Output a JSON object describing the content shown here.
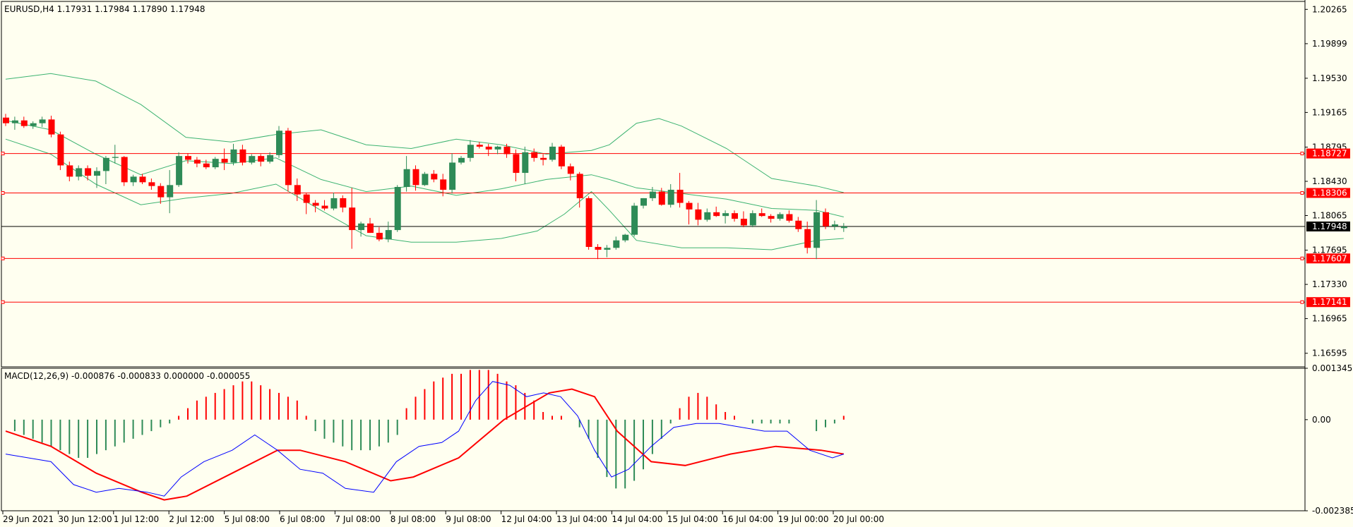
{
  "window": {
    "header": "EURUSD,H4  1.17931 1.17984 1.17890 1.17948"
  },
  "colors": {
    "background": "#fffff0",
    "bull": "#2e8b57",
    "bear": "#ff0000",
    "bands": "#3cb371",
    "macd_line": "#0000ff",
    "signal_line": "#ff0000",
    "hline": "#ff0000",
    "price_line": "#000000"
  },
  "chart_data": [
    {
      "type": "candlestick",
      "title": "EURUSD,H4",
      "ohlc_latest": {
        "open": 1.17931,
        "high": 1.17984,
        "low": 1.1789,
        "close": 1.17948
      },
      "ylim": [
        1.1645,
        1.2035
      ],
      "y_ticks": [
        "1.20265",
        "1.19899",
        "1.19530",
        "1.19165",
        "1.18795",
        "1.18430",
        "1.18065",
        "1.17695",
        "1.17330",
        "1.16965",
        "1.16595"
      ],
      "x_ticks": [
        "29 Jun 2021",
        "30 Jun 12:00",
        "1 Jul 12:00",
        "2 Jul 12:00",
        "5 Jul 08:00",
        "6 Jul 08:00",
        "7 Jul 08:00",
        "8 Jul 08:00",
        "9 Jul 08:00",
        "12 Jul 04:00",
        "13 Jul 04:00",
        "14 Jul 04:00",
        "15 Jul 04:00",
        "16 Jul 04:00",
        "19 Jul 00:00",
        "20 Jul 00:00"
      ],
      "current_price": "1.17948",
      "horizontal_levels": [
        "1.18727",
        "1.18306",
        "1.17607",
        "1.17141"
      ],
      "candles": [
        [
          1.1911,
          1.1915,
          1.1902,
          1.1905
        ],
        [
          1.1905,
          1.1912,
          1.1898,
          1.1908
        ],
        [
          1.1908,
          1.1912,
          1.19,
          1.1902
        ],
        [
          1.1902,
          1.1907,
          1.1899,
          1.1905
        ],
        [
          1.1905,
          1.1912,
          1.1901,
          1.1909
        ],
        [
          1.1909,
          1.1913,
          1.189,
          1.1893
        ],
        [
          1.1893,
          1.1896,
          1.1855,
          1.186
        ],
        [
          1.186,
          1.1864,
          1.1843,
          1.1848
        ],
        [
          1.1848,
          1.186,
          1.1844,
          1.1857
        ],
        [
          1.1857,
          1.186,
          1.1844,
          1.1849
        ],
        [
          1.1849,
          1.1858,
          1.1836,
          1.1854
        ],
        [
          1.1854,
          1.187,
          1.184,
          1.1868
        ],
        [
          1.1868,
          1.1882,
          1.1862,
          1.1869
        ],
        [
          1.1869,
          1.187,
          1.1838,
          1.1842
        ],
        [
          1.1842,
          1.185,
          1.1838,
          1.1848
        ],
        [
          1.1848,
          1.1851,
          1.184,
          1.1842
        ],
        [
          1.1842,
          1.1846,
          1.1834,
          1.1838
        ],
        [
          1.1838,
          1.1841,
          1.1819,
          1.1826
        ],
        [
          1.1826,
          1.1855,
          1.1809,
          1.1839
        ],
        [
          1.1839,
          1.1874,
          1.1837,
          1.187
        ],
        [
          1.187,
          1.1873,
          1.1862,
          1.1866
        ],
        [
          1.1866,
          1.1869,
          1.1858,
          1.1862
        ],
        [
          1.1862,
          1.1866,
          1.1856,
          1.1858
        ],
        [
          1.1858,
          1.1869,
          1.1856,
          1.1867
        ],
        [
          1.1867,
          1.1878,
          1.1855,
          1.1863
        ],
        [
          1.1863,
          1.1883,
          1.186,
          1.1877
        ],
        [
          1.1877,
          1.1882,
          1.186,
          1.1863
        ],
        [
          1.1863,
          1.1872,
          1.1861,
          1.187
        ],
        [
          1.187,
          1.1872,
          1.1859,
          1.1864
        ],
        [
          1.1864,
          1.1874,
          1.1862,
          1.1871
        ],
        [
          1.1871,
          1.1902,
          1.1868,
          1.1897
        ],
        [
          1.1897,
          1.19,
          1.1832,
          1.1839
        ],
        [
          1.1839,
          1.1846,
          1.1822,
          1.1829
        ],
        [
          1.1829,
          1.1831,
          1.1808,
          1.182
        ],
        [
          1.182,
          1.1823,
          1.181,
          1.1817
        ],
        [
          1.1817,
          1.1823,
          1.1812,
          1.1814
        ],
        [
          1.1814,
          1.1831,
          1.1812,
          1.1825
        ],
        [
          1.1825,
          1.1828,
          1.181,
          1.1815
        ],
        [
          1.1815,
          1.1836,
          1.1771,
          1.1791
        ],
        [
          1.1791,
          1.18,
          1.1784,
          1.1798
        ],
        [
          1.1798,
          1.1804,
          1.1788,
          1.1788
        ],
        [
          1.1788,
          1.1794,
          1.1779,
          1.1781
        ],
        [
          1.1781,
          1.18,
          1.1778,
          1.1791
        ],
        [
          1.1791,
          1.1839,
          1.1789,
          1.1837
        ],
        [
          1.1837,
          1.187,
          1.1832,
          1.1856
        ],
        [
          1.1856,
          1.186,
          1.1833,
          1.1839
        ],
        [
          1.1839,
          1.1853,
          1.1838,
          1.1851
        ],
        [
          1.1851,
          1.1855,
          1.1842,
          1.1845
        ],
        [
          1.1845,
          1.1851,
          1.1827,
          1.1834
        ],
        [
          1.1834,
          1.1873,
          1.183,
          1.1863
        ],
        [
          1.1863,
          1.187,
          1.1861,
          1.1868
        ],
        [
          1.1868,
          1.1887,
          1.1864,
          1.1882
        ],
        [
          1.1882,
          1.1885,
          1.1878,
          1.188
        ],
        [
          1.188,
          1.1883,
          1.187,
          1.1877
        ],
        [
          1.1877,
          1.1881,
          1.1872,
          1.188
        ],
        [
          1.188,
          1.1883,
          1.1868,
          1.1872
        ],
        [
          1.1872,
          1.1877,
          1.1843,
          1.1852
        ],
        [
          1.1852,
          1.188,
          1.184,
          1.1874
        ],
        [
          1.1874,
          1.1878,
          1.1864,
          1.1868
        ],
        [
          1.1868,
          1.1872,
          1.186,
          1.1866
        ],
        [
          1.1866,
          1.1884,
          1.1864,
          1.188
        ],
        [
          1.188,
          1.1882,
          1.1856,
          1.1859
        ],
        [
          1.1859,
          1.1862,
          1.1844,
          1.1851
        ],
        [
          1.1851,
          1.1853,
          1.1815,
          1.1825
        ],
        [
          1.1825,
          1.1827,
          1.177,
          1.1773
        ],
        [
          1.1773,
          1.1776,
          1.176,
          1.177
        ],
        [
          1.177,
          1.1775,
          1.1762,
          1.1772
        ],
        [
          1.1772,
          1.1784,
          1.177,
          1.178
        ],
        [
          1.178,
          1.1787,
          1.1778,
          1.1786
        ],
        [
          1.1786,
          1.182,
          1.1784,
          1.1817
        ],
        [
          1.1817,
          1.1825,
          1.1814,
          1.1825
        ],
        [
          1.1825,
          1.1837,
          1.1822,
          1.1832
        ],
        [
          1.1832,
          1.1836,
          1.1817,
          1.1818
        ],
        [
          1.1818,
          1.184,
          1.1815,
          1.1834
        ],
        [
          1.1834,
          1.1852,
          1.1815,
          1.182
        ],
        [
          1.182,
          1.1822,
          1.1797,
          1.1813
        ],
        [
          1.1813,
          1.182,
          1.1796,
          1.1802
        ],
        [
          1.1802,
          1.1814,
          1.18,
          1.181
        ],
        [
          1.181,
          1.1816,
          1.1805,
          1.1806
        ],
        [
          1.1806,
          1.1812,
          1.1798,
          1.1809
        ],
        [
          1.1809,
          1.1812,
          1.18,
          1.1803
        ],
        [
          1.1803,
          1.1811,
          1.1794,
          1.1796
        ],
        [
          1.1796,
          1.1812,
          1.1794,
          1.1809
        ],
        [
          1.1809,
          1.1814,
          1.1805,
          1.1806
        ],
        [
          1.1806,
          1.1808,
          1.1799,
          1.1803
        ],
        [
          1.1803,
          1.181,
          1.1801,
          1.1808
        ],
        [
          1.1808,
          1.1812,
          1.1799,
          1.1801
        ],
        [
          1.1801,
          1.1805,
          1.1789,
          1.1792
        ],
        [
          1.1792,
          1.18,
          1.1766,
          1.1772
        ],
        [
          1.1772,
          1.1823,
          1.176,
          1.181
        ],
        [
          1.181,
          1.1814,
          1.1792,
          1.1795
        ],
        [
          1.1795,
          1.1801,
          1.1791,
          1.1797
        ],
        [
          1.17931,
          1.17984,
          1.1789,
          1.17948
        ]
      ],
      "bollinger": {
        "upper": [
          [
            0,
            1.1952
          ],
          [
            10,
            1.1958
          ],
          [
            20,
            1.195
          ],
          [
            30,
            1.1925
          ],
          [
            40,
            1.189
          ],
          [
            50,
            1.1885
          ],
          [
            60,
            1.1893
          ],
          [
            70,
            1.1898
          ],
          [
            80,
            1.1882
          ],
          [
            90,
            1.1878
          ],
          [
            100,
            1.1888
          ],
          [
            110,
            1.1882
          ],
          [
            120,
            1.1872
          ],
          [
            130,
            1.1876
          ],
          [
            134,
            1.1882
          ],
          [
            140,
            1.1905
          ],
          [
            145,
            1.191
          ],
          [
            150,
            1.1902
          ],
          [
            160,
            1.1878
          ],
          [
            170,
            1.1846
          ],
          [
            180,
            1.1838
          ],
          [
            186,
            1.1831
          ]
        ],
        "middle": [
          [
            0,
            1.1908
          ],
          [
            10,
            1.1898
          ],
          [
            20,
            1.1872
          ],
          [
            30,
            1.185
          ],
          [
            40,
            1.1865
          ],
          [
            50,
            1.1862
          ],
          [
            60,
            1.1868
          ],
          [
            70,
            1.1845
          ],
          [
            80,
            1.1832
          ],
          [
            90,
            1.1838
          ],
          [
            100,
            1.1828
          ],
          [
            110,
            1.1835
          ],
          [
            120,
            1.1845
          ],
          [
            130,
            1.185
          ],
          [
            134,
            1.1845
          ],
          [
            140,
            1.1836
          ],
          [
            150,
            1.183
          ],
          [
            160,
            1.1824
          ],
          [
            170,
            1.1814
          ],
          [
            180,
            1.1812
          ],
          [
            186,
            1.1805
          ]
        ],
        "lower": [
          [
            0,
            1.1888
          ],
          [
            10,
            1.1872
          ],
          [
            20,
            1.184
          ],
          [
            30,
            1.1818
          ],
          [
            40,
            1.1825
          ],
          [
            50,
            1.183
          ],
          [
            60,
            1.184
          ],
          [
            70,
            1.1812
          ],
          [
            80,
            1.1785
          ],
          [
            90,
            1.1778
          ],
          [
            100,
            1.1778
          ],
          [
            110,
            1.1782
          ],
          [
            118,
            1.179
          ],
          [
            124,
            1.1808
          ],
          [
            130,
            1.1832
          ],
          [
            134,
            1.1812
          ],
          [
            140,
            1.178
          ],
          [
            150,
            1.1772
          ],
          [
            160,
            1.1772
          ],
          [
            170,
            1.177
          ],
          [
            180,
            1.178
          ],
          [
            186,
            1.1782
          ]
        ]
      }
    },
    {
      "type": "macd",
      "title": "MACD(12,26,9) -0.000876 -0.000833 0.000000 -0.000055",
      "params": "MACD(12,26,9)",
      "values": {
        "macd": -0.000876,
        "signal": -0.000833,
        "histogram": 0.0,
        "extra": -5.5e-05
      },
      "ylim": [
        -0.002385,
        0.001345
      ],
      "y_ticks": [
        "0.001345",
        "0.00",
        "-0.002385"
      ],
      "histogram": [
        -0.0003,
        -0.0004,
        -0.0005,
        -0.0006,
        -0.0007,
        -0.0008,
        -0.0009,
        -0.001,
        -0.001,
        -0.0009,
        -0.0008,
        -0.0007,
        -0.0006,
        -0.0005,
        -0.0004,
        -0.0003,
        -0.0002,
        -0.0001,
        0.0001,
        0.0003,
        0.0005,
        0.0006,
        0.0007,
        0.0008,
        0.0009,
        0.001,
        0.001,
        0.0009,
        0.0008,
        0.0007,
        0.0006,
        0.0005,
        0.0001,
        -0.0003,
        -0.0005,
        -0.0006,
        -0.0007,
        -0.0008,
        -0.0008,
        -0.0008,
        -0.0007,
        -0.0006,
        -0.0004,
        0.0003,
        0.0006,
        0.0008,
        0.001,
        0.0011,
        0.0012,
        0.0012,
        0.0013,
        0.0013,
        0.0013,
        0.0012,
        0.001,
        0.0009,
        0.0007,
        0.0005,
        0.0002,
        0.0001,
        0.0001,
        0.0,
        -0.0002,
        -0.0005,
        -0.001,
        -0.0015,
        -0.0018,
        -0.0018,
        -0.0016,
        -0.0013,
        -0.0009,
        -0.0005,
        -0.0001,
        0.0003,
        0.0006,
        0.0007,
        0.0006,
        0.0004,
        0.0002,
        0.0001,
        0.0,
        -0.0001,
        -0.0001,
        -0.0001,
        -0.0001,
        -0.0001,
        0.0,
        0.0,
        -0.0003,
        -0.0002,
        -0.0001,
        0.0001
      ],
      "macd_line": [
        [
          0,
          -0.0009
        ],
        [
          8,
          -0.001
        ],
        [
          16,
          -0.0011
        ],
        [
          24,
          -0.0017
        ],
        [
          32,
          -0.0019
        ],
        [
          40,
          -0.0018
        ],
        [
          50,
          -0.0019
        ],
        [
          56,
          -0.002
        ],
        [
          62,
          -0.0015
        ],
        [
          70,
          -0.0011
        ],
        [
          80,
          -0.0008
        ],
        [
          88,
          -0.0004
        ],
        [
          96,
          -0.0008
        ],
        [
          104,
          -0.0013
        ],
        [
          112,
          -0.0014
        ],
        [
          120,
          -0.0018
        ],
        [
          130,
          -0.0019
        ],
        [
          138,
          -0.0011
        ],
        [
          146,
          -0.0007
        ],
        [
          154,
          -0.0006
        ],
        [
          160,
          -0.0003
        ],
        [
          166,
          0.0005
        ],
        [
          172,
          0.001
        ],
        [
          178,
          0.0009
        ],
        [
          184,
          0.0006
        ],
        [
          190,
          0.0007
        ],
        [
          196,
          0.0006
        ],
        [
          202,
          0.0001
        ],
        [
          208,
          -0.0008
        ],
        [
          214,
          -0.0015
        ],
        [
          220,
          -0.0013
        ],
        [
          228,
          -0.0007
        ],
        [
          236,
          -0.0002
        ],
        [
          244,
          -0.0001
        ],
        [
          252,
          -0.0001
        ],
        [
          260,
          -0.0002
        ],
        [
          268,
          -0.0003
        ],
        [
          276,
          -0.0003
        ],
        [
          284,
          -0.0008
        ],
        [
          292,
          -0.001
        ],
        [
          296,
          -0.0009
        ]
      ],
      "signal_line": [
        [
          0,
          -0.0003
        ],
        [
          16,
          -0.0007
        ],
        [
          32,
          -0.0014
        ],
        [
          48,
          -0.0019
        ],
        [
          56,
          -0.0021
        ],
        [
          64,
          -0.002
        ],
        [
          80,
          -0.0014
        ],
        [
          96,
          -0.0008
        ],
        [
          104,
          -0.0008
        ],
        [
          120,
          -0.0011
        ],
        [
          136,
          -0.0016
        ],
        [
          144,
          -0.0015
        ],
        [
          160,
          -0.001
        ],
        [
          176,
          0.0
        ],
        [
          192,
          0.0007
        ],
        [
          200,
          0.0008
        ],
        [
          208,
          0.0006
        ],
        [
          216,
          -0.0003
        ],
        [
          228,
          -0.0011
        ],
        [
          240,
          -0.0012
        ],
        [
          256,
          -0.0009
        ],
        [
          272,
          -0.0007
        ],
        [
          288,
          -0.0008
        ],
        [
          296,
          -0.0009
        ]
      ]
    }
  ]
}
